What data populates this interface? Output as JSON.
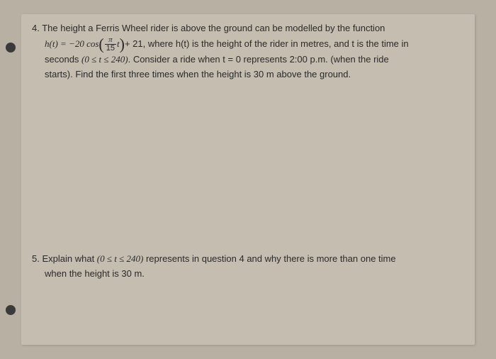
{
  "background_color": "#b8b0a3",
  "paper_color": "#c4bdb0",
  "text_color": "#2a2a2a",
  "font_family": "Comic Sans MS",
  "font_size_pt": 13,
  "questions": [
    {
      "number": "4.",
      "line1": "The height a Ferris Wheel rider is above the ground can be modelled by the function",
      "equation_prefix": "h(t) = −20 cos",
      "frac_num": "π",
      "frac_den": "15",
      "equation_mid": "t",
      "equation_suffix": "+ 21",
      "line2_rest": ", where h(t) is the height of the rider in metres, and t is the time in",
      "line3a": "seconds ",
      "interval": "(0 ≤ t ≤ 240)",
      "line3b": ".  Consider a ride when t = 0 represents 2:00 p.m. (when the ride",
      "line4": "starts).  Find the first three times when the height is 30 m above the ground."
    },
    {
      "number": "5.",
      "line1a": "Explain what ",
      "interval": "(0 ≤ t ≤ 240)",
      "line1b": " represents in question 4 and why there is more than one time",
      "line2": "when the height is 30 m."
    }
  ]
}
